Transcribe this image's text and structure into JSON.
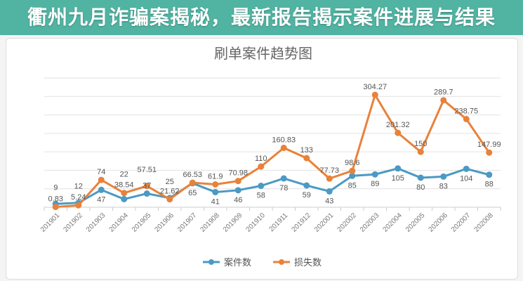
{
  "banner": {
    "headline": "衢州九月诈骗案揭秘，最新报告揭示案件进展与结果"
  },
  "chart_data": {
    "type": "line",
    "title": "刷单案件趋势图",
    "categories": [
      "201901",
      "201902",
      "201903",
      "201904",
      "201905",
      "201906",
      "201907",
      "201908",
      "201909",
      "201910",
      "201911",
      "201912",
      "202001",
      "202002",
      "202003",
      "202004",
      "202005",
      "202006",
      "202007",
      "202008"
    ],
    "ylim": [
      0,
      350
    ],
    "grid": true,
    "legend": "bottom",
    "series": [
      {
        "name": "案件数",
        "color": "#4a9ac4",
        "values": [
          9,
          12,
          47,
          22,
          37,
          25,
          65,
          41,
          46,
          58,
          78,
          59,
          43,
          85,
          89,
          105,
          80,
          83,
          104,
          88
        ]
      },
      {
        "name": "损失数",
        "color": "#e8823a",
        "values": [
          0.83,
          5.24,
          74,
          38.54,
          57.51,
          21.62,
          66.53,
          61.9,
          70.98,
          110,
          160.83,
          133,
          77.73,
          98.6,
          304.27,
          201.32,
          150,
          289.7,
          238.75,
          147.99
        ]
      }
    ]
  }
}
